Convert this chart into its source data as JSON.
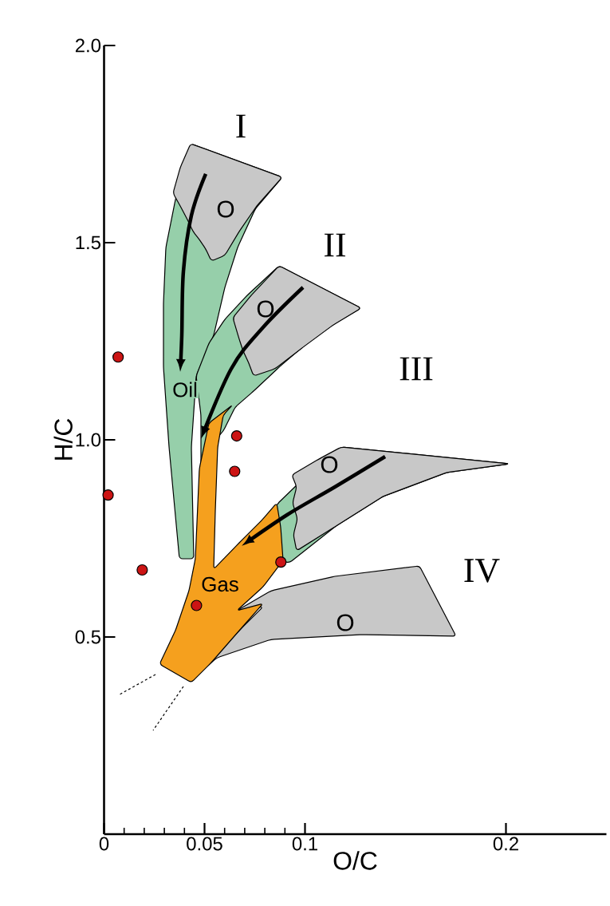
{
  "chart_data": {
    "type": "scatter",
    "xlabel": "O/C",
    "ylabel": "H/C",
    "x": [
      0.007,
      0.002,
      0.019,
      0.066,
      0.065,
      0.088,
      0.046
    ],
    "series": [
      {
        "color": "#cc1414",
        "values": [
          1.21,
          0.86,
          0.67,
          1.01,
          0.92,
          0.69,
          0.58
        ]
      }
    ],
    "marker": "circle",
    "xlim": [
      0,
      0.25
    ],
    "ylim": [
      0,
      2.0
    ],
    "xticks": [
      0,
      {
        "value": 0.01,
        "label": null
      },
      {
        "value": 0.02,
        "label": null
      },
      {
        "value": 0.03,
        "label": null
      },
      {
        "value": 0.04,
        "label": null
      },
      0.05,
      {
        "value": 0.06,
        "label": null
      },
      {
        "value": 0.07,
        "label": null
      },
      {
        "value": 0.08,
        "label": null
      },
      {
        "value": 0.09,
        "label": null
      },
      0.1,
      0.2
    ],
    "yticks": [
      0.5,
      {
        "value": 1,
        "label": "1.0"
      },
      1.5,
      {
        "value": 2,
        "label": "2.0"
      }
    ],
    "annotations": [
      "I",
      "II",
      "III",
      "IV",
      "Oil",
      "Gas",
      "O",
      "O",
      "O",
      "O"
    ]
  }
}
